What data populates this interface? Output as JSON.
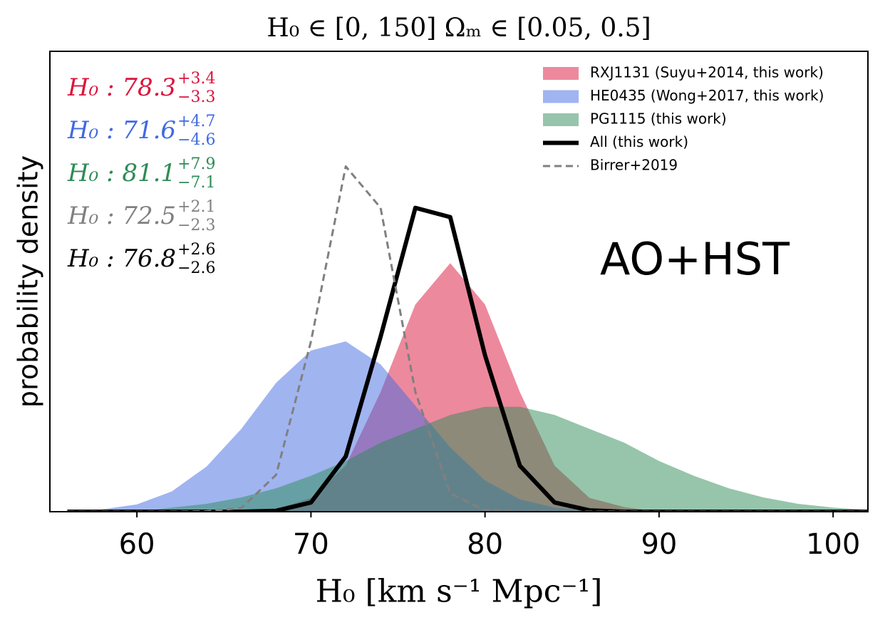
{
  "chart_data": {
    "type": "area",
    "title": "H₀ ∈ [0, 150]   Ωₘ ∈ [0.05, 0.5]",
    "xlabel": "H₀ [km s⁻¹ Mpc⁻¹]",
    "ylabel": "probability density",
    "annotation": "AO+HST",
    "xlim": [
      55,
      102
    ],
    "xticks": [
      60,
      70,
      80,
      90,
      100
    ],
    "ylim": [
      0,
      1
    ],
    "legend": "upper right",
    "x": [
      56,
      58,
      60,
      62,
      64,
      66,
      68,
      70,
      72,
      74,
      76,
      78,
      80,
      82,
      84,
      86,
      88,
      90,
      92,
      94,
      96,
      98,
      100,
      102
    ],
    "series": [
      {
        "name": "RXJ1131 (Suyu+2014, this work)",
        "color": "#dc143c",
        "kind": "area",
        "values": [
          0,
          0,
          0,
          0,
          0,
          0,
          0.005,
          0.03,
          0.1,
          0.26,
          0.45,
          0.54,
          0.45,
          0.26,
          0.1,
          0.03,
          0.01,
          0,
          0,
          0,
          0,
          0,
          0,
          0
        ]
      },
      {
        "name": "HE0435 (Wong+2017, this work)",
        "color": "#4169e1",
        "kind": "area",
        "values": [
          0.001,
          0.005,
          0.016,
          0.044,
          0.098,
          0.18,
          0.28,
          0.35,
          0.37,
          0.32,
          0.23,
          0.14,
          0.068,
          0.027,
          0.009,
          0.003,
          0.001,
          0,
          0,
          0,
          0,
          0,
          0,
          0
        ]
      },
      {
        "name": "PG1115 (this work)",
        "color": "#2e8b57",
        "kind": "area",
        "values": [
          0,
          0,
          0,
          0.009,
          0.017,
          0.031,
          0.051,
          0.078,
          0.11,
          0.15,
          0.18,
          0.21,
          0.228,
          0.228,
          0.21,
          0.18,
          0.15,
          0.11,
          0.078,
          0.051,
          0.031,
          0.017,
          0.009,
          0.004
        ]
      },
      {
        "name": "All (this work)",
        "color": "#000000",
        "kind": "line",
        "values": [
          0,
          0,
          0,
          0,
          0,
          0,
          0.002,
          0.02,
          0.12,
          0.38,
          0.66,
          0.64,
          0.34,
          0.1,
          0.02,
          0.003,
          0,
          0,
          0,
          0,
          0,
          0,
          0,
          0
        ]
      },
      {
        "name": "Birrer+2019",
        "color": "#808080",
        "kind": "dashed",
        "values": [
          0,
          0,
          0,
          0,
          0.001,
          0.008,
          0.08,
          0.37,
          0.75,
          0.66,
          0.26,
          0.04,
          0.003,
          0,
          0,
          0,
          0,
          0,
          0,
          0,
          0,
          0,
          0,
          0
        ]
      }
    ],
    "estimates": [
      {
        "label": "H₀ : 78.3",
        "plus": "+3.4",
        "minus": "−3.3",
        "color": "#dc143c"
      },
      {
        "label": "H₀ : 71.6",
        "plus": "+4.7",
        "minus": "−4.6",
        "color": "#4169e1"
      },
      {
        "label": "H₀ : 81.1",
        "plus": "+7.9",
        "minus": "−7.1",
        "color": "#2e8b57"
      },
      {
        "label": "H₀ : 72.5",
        "plus": "+2.1",
        "minus": "−2.3",
        "color": "#808080"
      },
      {
        "label": "H₀ : 76.8",
        "plus": "+2.6",
        "minus": "−2.6",
        "color": "#000000"
      }
    ]
  }
}
